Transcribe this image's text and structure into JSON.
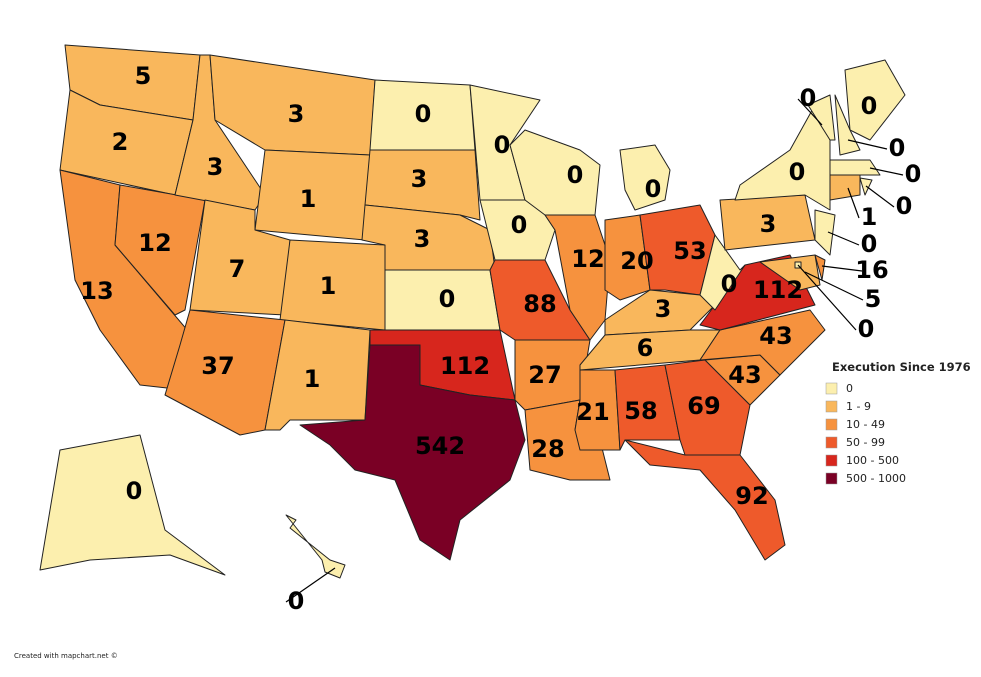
{
  "map": {
    "legend": {
      "title": "Execution Since 1976",
      "items": [
        {
          "label": "0",
          "color": "#fcefae"
        },
        {
          "label": "1 - 9",
          "color": "#f9b75c"
        },
        {
          "label": "10 - 49",
          "color": "#f6923e"
        },
        {
          "label": "50 - 99",
          "color": "#ee5a2b"
        },
        {
          "label": "100 - 500",
          "color": "#d7261d"
        },
        {
          "label": "500 - 1000",
          "color": "#7a0025"
        }
      ]
    },
    "states": [
      {
        "value": 5,
        "color": "#f9b75c"
      },
      {
        "value": 2,
        "color": "#f9b75c"
      },
      {
        "value": 13,
        "color": "#f6923e"
      },
      {
        "value": 12,
        "color": "#f6923e"
      },
      {
        "value": 3,
        "color": "#f9b75c"
      },
      {
        "value": 3,
        "color": "#f9b75c"
      },
      {
        "value": 1,
        "color": "#f9b75c"
      },
      {
        "value": 7,
        "color": "#f9b75c"
      },
      {
        "value": 1,
        "color": "#f9b75c"
      },
      {
        "value": 37,
        "color": "#f6923e"
      },
      {
        "value": 1,
        "color": "#f9b75c"
      },
      {
        "value": 0,
        "color": "#fcefae"
      },
      {
        "value": 3,
        "color": "#f9b75c"
      },
      {
        "value": 3,
        "color": "#f9b75c"
      },
      {
        "value": 0,
        "color": "#fcefae"
      },
      {
        "value": 112,
        "color": "#d7261d"
      },
      {
        "value": 542,
        "color": "#7a0025"
      },
      {
        "value": 0,
        "color": "#fcefae"
      },
      {
        "value": 0,
        "color": "#fcefae"
      },
      {
        "value": 88,
        "color": "#ee5a2b"
      },
      {
        "value": 27,
        "color": "#f6923e"
      },
      {
        "value": 28,
        "color": "#f6923e"
      },
      {
        "value": 0,
        "color": "#fcefae"
      },
      {
        "value": 12,
        "color": "#f6923e"
      },
      {
        "value": 0,
        "color": "#fcefae"
      },
      {
        "value": 20,
        "color": "#f6923e"
      },
      {
        "value": 53,
        "color": "#ee5a2b"
      },
      {
        "value": 3,
        "color": "#f9b75c"
      },
      {
        "value": 6,
        "color": "#f9b75c"
      },
      {
        "value": 21,
        "color": "#f6923e"
      },
      {
        "value": 58,
        "color": "#ee5a2b"
      },
      {
        "value": 69,
        "color": "#ee5a2b"
      },
      {
        "value": 92,
        "color": "#ee5a2b"
      },
      {
        "value": 43,
        "color": "#f6923e"
      },
      {
        "value": 43,
        "color": "#f6923e"
      },
      {
        "value": 112,
        "color": "#d7261d"
      },
      {
        "value": 0,
        "color": "#fcefae"
      },
      {
        "value": 3,
        "color": "#f9b75c"
      },
      {
        "value": 0,
        "color": "#fcefae"
      },
      {
        "value": 0,
        "color": "#fcefae"
      },
      {
        "value": 0,
        "color": "#fcefae"
      },
      {
        "value": 0,
        "color": "#fcefae"
      },
      {
        "value": 0,
        "color": "#fcefae"
      },
      {
        "value": 0,
        "color": "#fcefae"
      },
      {
        "value": 1,
        "color": "#f9b75c"
      },
      {
        "value": 0,
        "color": "#fcefae"
      },
      {
        "value": 16,
        "color": "#f6923e"
      },
      {
        "value": 5,
        "color": "#f9b75c"
      },
      {
        "value": 0,
        "color": "#fcefae"
      },
      {
        "value": 0,
        "color": "#fcefae"
      },
      {
        "value": 0,
        "color": "#fcefae"
      }
    ]
  },
  "footer": "Created with mapchart.net ©"
}
